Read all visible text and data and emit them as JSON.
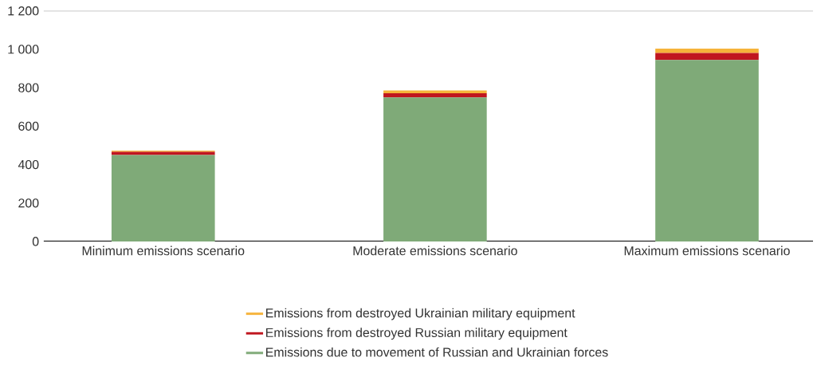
{
  "chart_data": {
    "type": "bar",
    "stacked": true,
    "categories": [
      "Minimum emissions scenario",
      "Moderate emissions scenario",
      "Maximum emissions scenario"
    ],
    "series": [
      {
        "name": "Emissions due to movement of Russian and Ukrainian forces",
        "color": "#7faa78",
        "values": [
          450,
          750,
          945
        ]
      },
      {
        "name": "Emissions from destroyed Russian military equipment",
        "color": "#c0161f",
        "values": [
          17,
          21,
          36
        ]
      },
      {
        "name": "Emissions from destroyed Ukrainian military equipment",
        "color": "#f6b33a",
        "values": [
          6,
          15,
          23
        ]
      }
    ],
    "ylim": [
      0,
      1200
    ],
    "yticks": [
      0,
      200,
      400,
      600,
      800,
      {
        "value": 1000,
        "label": "1 000"
      },
      {
        "value": 1200,
        "label": "1 200"
      }
    ],
    "legend": "bottom"
  }
}
